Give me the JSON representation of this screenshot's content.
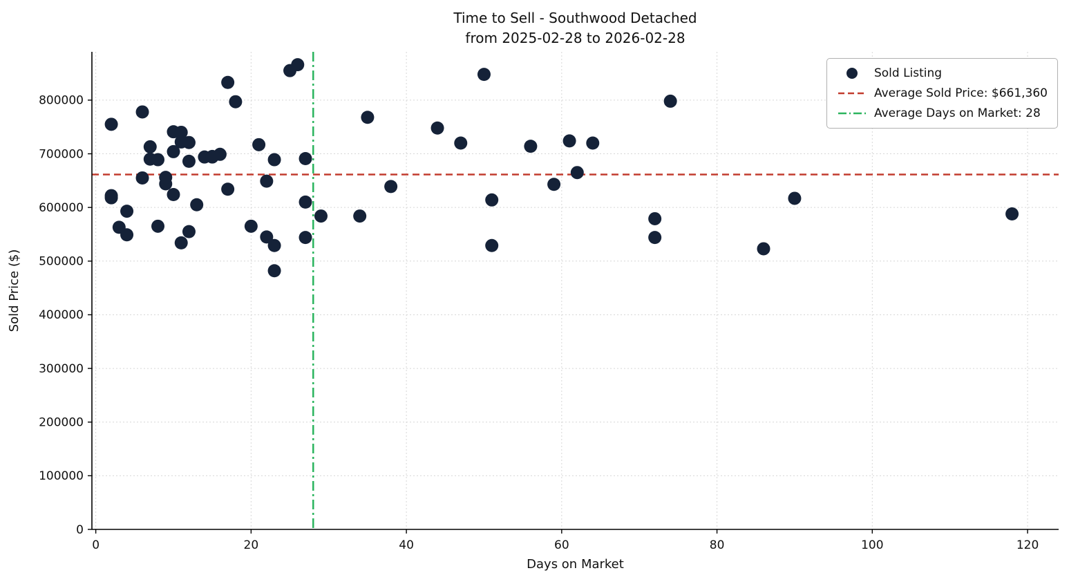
{
  "chart_data": {
    "type": "scatter",
    "title": "Time to Sell - Southwood Detached",
    "subtitle": "from 2025-02-28 to 2026-02-28",
    "xlabel": "Days on Market",
    "ylabel": "Sold Price ($)",
    "xlim": [
      -0.5,
      124
    ],
    "ylim": [
      0,
      890000
    ],
    "x_ticks": [
      0,
      20,
      40,
      60,
      80,
      100,
      120
    ],
    "y_ticks": [
      0,
      100000,
      200000,
      300000,
      400000,
      500000,
      600000,
      700000,
      800000
    ],
    "grid": true,
    "legend_position": "top-right",
    "avg_sold_price": 661360,
    "avg_days_on_market": 28,
    "points": [
      [
        2,
        755000
      ],
      [
        2,
        622000
      ],
      [
        2,
        618000
      ],
      [
        3,
        563000
      ],
      [
        4,
        593000
      ],
      [
        4,
        549000
      ],
      [
        6,
        778000
      ],
      [
        6,
        655000
      ],
      [
        7,
        713000
      ],
      [
        7,
        690000
      ],
      [
        8,
        689000
      ],
      [
        8,
        565000
      ],
      [
        9,
        644000
      ],
      [
        9,
        656000
      ],
      [
        10,
        741000
      ],
      [
        10,
        704000
      ],
      [
        10,
        624000
      ],
      [
        11,
        740000
      ],
      [
        11,
        534000
      ],
      [
        11,
        722000
      ],
      [
        12,
        686000
      ],
      [
        12,
        555000
      ],
      [
        12,
        721000
      ],
      [
        13,
        605000
      ],
      [
        14,
        694000
      ],
      [
        15,
        695000
      ],
      [
        15,
        694000
      ],
      [
        16,
        699000
      ],
      [
        17,
        833000
      ],
      [
        17,
        634000
      ],
      [
        18,
        797000
      ],
      [
        20,
        565000
      ],
      [
        21,
        717000
      ],
      [
        22,
        649000
      ],
      [
        22,
        545000
      ],
      [
        23,
        689000
      ],
      [
        23,
        482000
      ],
      [
        23,
        529000
      ],
      [
        25,
        855000
      ],
      [
        26,
        866000
      ],
      [
        27,
        691000
      ],
      [
        27,
        610000
      ],
      [
        27,
        544000
      ],
      [
        29,
        584000
      ],
      [
        34,
        584000
      ],
      [
        35,
        768000
      ],
      [
        38,
        639000
      ],
      [
        44,
        748000
      ],
      [
        47,
        720000
      ],
      [
        50,
        848000
      ],
      [
        51,
        614000
      ],
      [
        51,
        529000
      ],
      [
        56,
        714000
      ],
      [
        59,
        643000
      ],
      [
        61,
        724000
      ],
      [
        62,
        665000
      ],
      [
        64,
        720000
      ],
      [
        72,
        579000
      ],
      [
        72,
        544000
      ],
      [
        74,
        798000
      ],
      [
        86,
        523000
      ],
      [
        90,
        617000
      ],
      [
        118,
        588000
      ]
    ],
    "colors": {
      "point": "#152238",
      "avg_price_line": "#c23b2e",
      "avg_dom_line": "#2bb45e",
      "grid": "#d6d6d6",
      "axis": "#000000",
      "text": "#111111"
    },
    "legend": [
      {
        "marker": "dot",
        "label": "Sold Listing"
      },
      {
        "marker": "dashed-red",
        "label": "Average Sold Price: $661,360"
      },
      {
        "marker": "dashdot-green",
        "label": "Average Days on Market: 28"
      }
    ]
  }
}
